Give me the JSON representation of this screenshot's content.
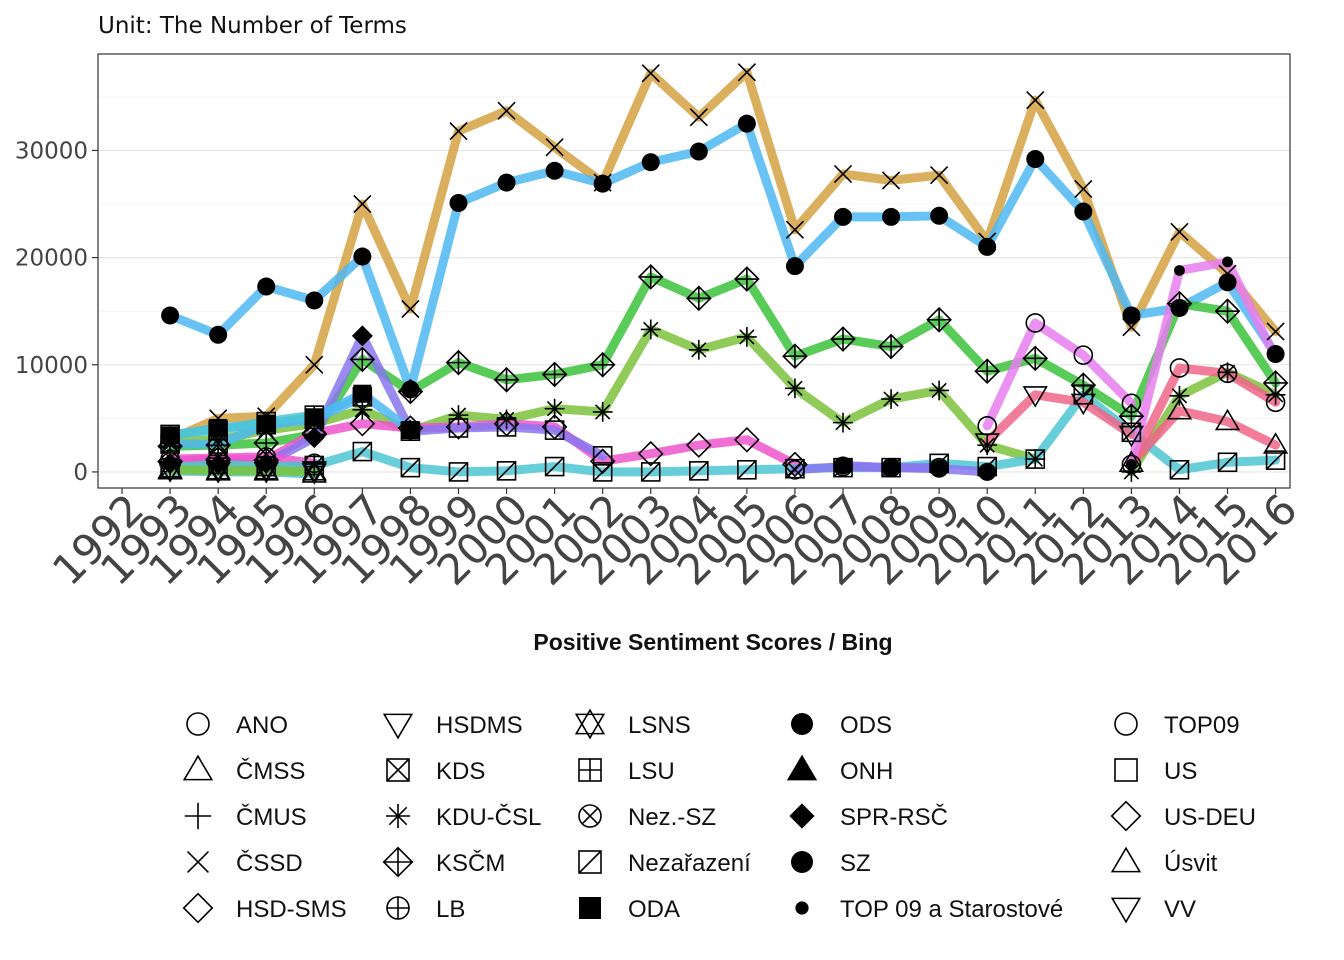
{
  "chart_data": {
    "type": "line",
    "subtitle": "Unit: The Number of Terms",
    "xlabel": "Positive Sentiment Scores / Bing",
    "ylabel": "",
    "x": [
      1992,
      1993,
      1994,
      1995,
      1996,
      1997,
      1998,
      1999,
      2000,
      2001,
      2002,
      2003,
      2004,
      2005,
      2006,
      2007,
      2008,
      2009,
      2010,
      2011,
      2012,
      2013,
      2014,
      2015,
      2016
    ],
    "xlim": [
      1991.5,
      2016.3
    ],
    "ylim": [
      -1500,
      39000
    ],
    "yticks": [
      0,
      10000,
      20000,
      30000
    ],
    "grid": true,
    "legend_position": "bottom",
    "series": [
      {
        "name": "ČSSD",
        "shape": "times",
        "color": "#d4a242",
        "values": [
          null,
          3000,
          5000,
          5200,
          10000,
          25000,
          15200,
          31800,
          33700,
          30300,
          27000,
          37200,
          33100,
          37300,
          22600,
          27800,
          27200,
          27700,
          21500,
          34700,
          26400,
          13500,
          22400,
          18500,
          13100
        ]
      },
      {
        "name": "ODS",
        "shape": "circle-filled",
        "color": "#4db8f2",
        "values": [
          null,
          14600,
          12800,
          17300,
          16000,
          20100,
          7700,
          25100,
          27000,
          28100,
          26900,
          28900,
          29900,
          32500,
          19200,
          23800,
          23800,
          23900,
          21000,
          29200,
          24300,
          14600,
          15300,
          17700,
          11000
        ]
      },
      {
        "name": "KSČM",
        "shape": "diamond-plus",
        "color": "#3cc23c",
        "values": [
          null,
          2400,
          2500,
          2700,
          3500,
          10500,
          7500,
          10200,
          8600,
          9100,
          10000,
          18200,
          16200,
          18000,
          10800,
          12400,
          11700,
          14200,
          9400,
          10600,
          8100,
          5200,
          15700,
          15000,
          8300
        ]
      },
      {
        "name": "KDU-ČSL",
        "shape": "asterisk",
        "color": "#7cc23c",
        "values": [
          null,
          2800,
          3000,
          3900,
          4500,
          5800,
          3800,
          5300,
          4900,
          5900,
          5600,
          13300,
          11400,
          12600,
          7800,
          4600,
          6800,
          7600,
          2500,
          1200,
          null,
          0,
          7100,
          9300,
          7200
        ]
      },
      {
        "name": "HSD-SMS",
        "shape": "diamond",
        "color": "#ee55cc",
        "values": [
          null,
          1000,
          1200,
          1100,
          3600,
          4500,
          4100,
          4200,
          4500,
          4200,
          1000,
          1700,
          2500,
          3000,
          700,
          null,
          null,
          null,
          null,
          null,
          null,
          null,
          null,
          null,
          null
        ]
      },
      {
        "name": "SPR-RSČ",
        "shape": "diamond-filled",
        "color": "#8877ee",
        "values": [
          null,
          800,
          700,
          800,
          3200,
          12700,
          3900,
          null,
          null,
          null,
          null,
          null,
          null,
          null,
          null,
          null,
          null,
          null,
          null,
          null,
          null,
          null,
          null,
          null,
          null
        ]
      },
      {
        "name": "US",
        "shape": "square",
        "color": "#8877ee",
        "values": [
          null,
          null,
          null,
          null,
          null,
          null,
          3800,
          4100,
          4200,
          3900,
          1500,
          null,
          null,
          null,
          null,
          null,
          null,
          null,
          null,
          null,
          null,
          null,
          null,
          null,
          null
        ]
      },
      {
        "name": "ODA",
        "shape": "square-filled",
        "color": "#4db8f2",
        "values": [
          null,
          3400,
          4100,
          4500,
          5100,
          7300,
          3900,
          null,
          null,
          null,
          null,
          null,
          null,
          null,
          null,
          null,
          null,
          null,
          null,
          null,
          null,
          null,
          null,
          null,
          null
        ]
      },
      {
        "name": "KDS",
        "shape": "square-x",
        "color": "#4db8f2",
        "values": [
          null,
          2600,
          2600,
          4400,
          4900,
          7000,
          null,
          null,
          null,
          null,
          null,
          null,
          null,
          null,
          null,
          null,
          null,
          null,
          null,
          null,
          null,
          null,
          null,
          null,
          null
        ]
      },
      {
        "name": "LSU",
        "shape": "square-plus",
        "color": "#4cc6d4",
        "values": [
          null,
          3500,
          3900,
          4700,
          5300,
          null,
          null,
          null,
          null,
          null,
          null,
          null,
          null,
          null,
          null,
          null,
          null,
          null,
          null,
          null,
          null,
          null,
          null,
          null,
          null
        ]
      },
      {
        "name": "HSDMS",
        "shape": "triangle-down",
        "color": "#3cc23c",
        "values": [
          null,
          200,
          300,
          300,
          200,
          null,
          null,
          null,
          null,
          null,
          null,
          null,
          null,
          null,
          null,
          null,
          null,
          null,
          null,
          null,
          null,
          null,
          null,
          null,
          null
        ]
      },
      {
        "name": "ČMUS",
        "shape": "plus",
        "color": "#d4a242",
        "values": [
          null,
          600,
          700,
          600,
          500,
          null,
          null,
          null,
          null,
          null,
          null,
          null,
          null,
          null,
          null,
          null,
          null,
          null,
          null,
          null,
          null,
          null,
          null,
          null,
          null
        ]
      },
      {
        "name": "LB",
        "shape": "circle-plus",
        "color": "#ee55cc",
        "values": [
          null,
          1200,
          1300,
          1400,
          800,
          null,
          null,
          null,
          null,
          null,
          null,
          null,
          null,
          null,
          null,
          null,
          null,
          null,
          null,
          null,
          null,
          null,
          null,
          null,
          null
        ]
      },
      {
        "name": "ČMSS",
        "shape": "triangle",
        "color": "#4cc6d4",
        "values": [
          null,
          100,
          0,
          0,
          -200,
          null,
          null,
          null,
          null,
          null,
          null,
          null,
          null,
          null,
          null,
          null,
          null,
          null,
          null,
          null,
          null,
          null,
          null,
          null,
          null
        ]
      },
      {
        "name": "Nezařazení",
        "shape": "square-slash",
        "color": "#4cc6d4",
        "values": [
          null,
          400,
          700,
          500,
          600,
          1900,
          400,
          0,
          100,
          500,
          0,
          0,
          100,
          200,
          300,
          400,
          400,
          800,
          500,
          1200,
          7200,
          3700,
          200,
          900,
          1100
        ]
      },
      {
        "name": "LSNS",
        "shape": "star-of-david",
        "color": "#7cc23c",
        "values": [
          null,
          200,
          100,
          100,
          0,
          null,
          null,
          null,
          null,
          null,
          null,
          null,
          null,
          null,
          null,
          null,
          null,
          null,
          null,
          null,
          null,
          null,
          null,
          null,
          null
        ]
      },
      {
        "name": "Nez.-SZ",
        "shape": "circle-x",
        "color": "#8877ee",
        "values": [
          null,
          null,
          null,
          null,
          null,
          null,
          null,
          null,
          null,
          null,
          null,
          null,
          null,
          null,
          200,
          500,
          400,
          400,
          null,
          null,
          null,
          null,
          null,
          null,
          null
        ]
      },
      {
        "name": "SZ",
        "shape": "circle-filled",
        "color": "#8877ee",
        "values": [
          null,
          null,
          null,
          null,
          null,
          null,
          null,
          null,
          null,
          null,
          null,
          null,
          null,
          null,
          null,
          600,
          400,
          300,
          0,
          null,
          null,
          null,
          null,
          null,
          null
        ]
      },
      {
        "name": "TOP09",
        "shape": "circle",
        "color": "#e67ef0",
        "values": [
          null,
          null,
          null,
          null,
          null,
          null,
          null,
          null,
          null,
          null,
          null,
          null,
          null,
          null,
          null,
          null,
          null,
          null,
          4300,
          13900,
          10900,
          6400,
          null,
          null,
          null
        ]
      },
      {
        "name": "VV",
        "shape": "triangle-down",
        "color": "#ee6688",
        "values": [
          null,
          null,
          null,
          null,
          null,
          null,
          null,
          null,
          null,
          null,
          null,
          null,
          null,
          null,
          null,
          null,
          null,
          null,
          2800,
          7200,
          6500,
          3500,
          null,
          null,
          null
        ]
      },
      {
        "name": "ANO",
        "shape": "circle",
        "color": "#ee6688",
        "values": [
          null,
          null,
          null,
          null,
          null,
          null,
          null,
          null,
          null,
          null,
          null,
          null,
          null,
          null,
          null,
          null,
          null,
          null,
          null,
          null,
          null,
          700,
          9700,
          9200,
          6500
        ]
      },
      {
        "name": "Úsvit",
        "shape": "triangle",
        "color": "#ee6688",
        "values": [
          null,
          null,
          null,
          null,
          null,
          null,
          null,
          null,
          null,
          null,
          null,
          null,
          null,
          null,
          null,
          null,
          null,
          null,
          null,
          null,
          null,
          800,
          5700,
          4700,
          2500
        ]
      },
      {
        "name": "TOP 09 a Starostové",
        "shape": "dot-small",
        "color": "#e67ef0",
        "values": [
          null,
          null,
          null,
          null,
          null,
          null,
          null,
          null,
          null,
          null,
          null,
          null,
          null,
          null,
          null,
          null,
          null,
          null,
          null,
          null,
          null,
          700,
          18800,
          19600,
          10700
        ]
      }
    ],
    "legend": [
      [
        "ANO",
        "ČMSS",
        "ČMUS",
        "ČSSD",
        "HSD-SMS"
      ],
      [
        "HSDMS",
        "KDS",
        "KDU-ČSL",
        "KSČM",
        "LB"
      ],
      [
        "LSNS",
        "LSU",
        "Nez.-SZ",
        "Nezařazení",
        "ODA"
      ],
      [
        "ODS",
        "ONH",
        "SPR-RSČ",
        "SZ",
        "TOP 09 a Starostové"
      ],
      [
        "TOP09",
        "US",
        "US-DEU",
        "Úsvit",
        "VV"
      ]
    ],
    "legend_shapes": {
      "ANO": "circle",
      "ČMSS": "triangle",
      "ČMUS": "plus",
      "ČSSD": "times",
      "HSD-SMS": "diamond",
      "HSDMS": "triangle-down",
      "KDS": "square-x",
      "KDU-ČSL": "asterisk",
      "KSČM": "diamond-plus",
      "LB": "circle-plus",
      "LSNS": "star-of-david",
      "LSU": "square-plus",
      "Nez.-SZ": "circle-x",
      "Nezařazení": "square-slash",
      "ODA": "square-filled",
      "ODS": "circle-filled",
      "ONH": "triangle-filled",
      "SPR-RSČ": "diamond-filled",
      "SZ": "circle-filled",
      "TOP 09 a Starostové": "dot-small",
      "TOP09": "circle",
      "US": "square",
      "US-DEU": "diamond",
      "Úsvit": "triangle",
      "VV": "triangle-down"
    }
  }
}
